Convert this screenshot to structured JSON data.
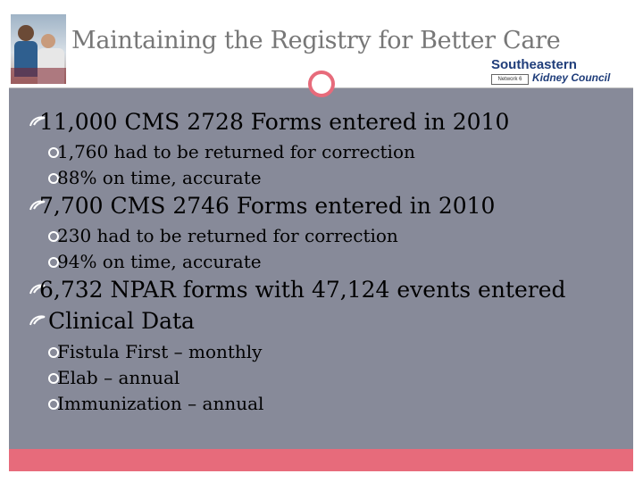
{
  "title": "Maintaining the Registry for Better Care",
  "logo": {
    "name": "Southeastern",
    "sub": "Network 6",
    "tagline": "Kidney Council"
  },
  "bullets": [
    {
      "text": "11,000 CMS 2728 Forms entered in 2010",
      "children": [
        "1,760 had to be returned for correction",
        "88% on time, accurate"
      ]
    },
    {
      "text": "7,700 CMS 2746 Forms entered in 2010",
      "children": [
        "230 had to be returned for correction",
        "94% on time, accurate"
      ]
    },
    {
      "text": "6,732 NPAR forms with 47,124 events entered",
      "children": []
    },
    {
      "text": "Clinical Data",
      "children": [
        "Fistula First – monthly",
        "Elab – annual",
        "Immunization – annual"
      ]
    }
  ],
  "colors": {
    "accent": "#e76b7b",
    "panel": "#878a99",
    "title": "#777777"
  },
  "icons": {
    "level1": "swirl-bullet-icon",
    "level2": "ring-bullet-icon"
  }
}
